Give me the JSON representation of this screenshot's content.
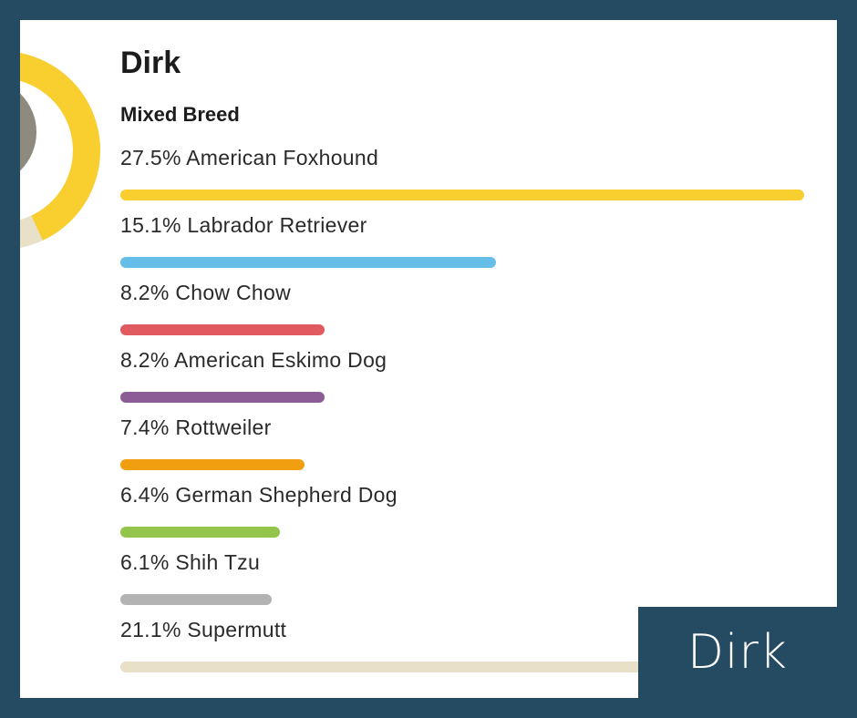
{
  "profile": {
    "name": "Dirk",
    "breed_type": "Mixed Breed",
    "badge_name": "Dirk"
  },
  "colors": {
    "background": "#244b61",
    "ring_primary": "#f9cf2f",
    "ring_secondary": "#e8e1c8"
  },
  "breeds": [
    {
      "label": "27.5% American Foxhound",
      "percent": 27.5,
      "color": "#f9cf2f"
    },
    {
      "label": "15.1% Labrador Retriever",
      "percent": 15.1,
      "color": "#64bee8"
    },
    {
      "label": "8.2% Chow Chow",
      "percent": 8.2,
      "color": "#e05a5f"
    },
    {
      "label": "8.2% American Eskimo Dog",
      "percent": 8.2,
      "color": "#8b5c96"
    },
    {
      "label": "7.4% Rottweiler",
      "percent": 7.4,
      "color": "#f29e11"
    },
    {
      "label": "6.4% German Shepherd Dog",
      "percent": 6.4,
      "color": "#93c54b"
    },
    {
      "label": "6.1% Shih Tzu",
      "percent": 6.1,
      "color": "#b3b3b3"
    },
    {
      "label": "21.1% Supermutt",
      "percent": 21.1,
      "color": "#e8e1c8"
    }
  ]
}
